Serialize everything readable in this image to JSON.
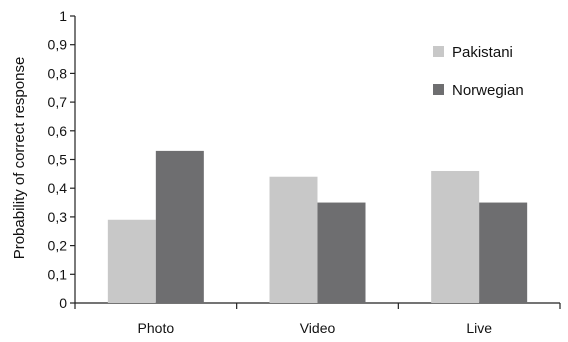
{
  "chart_data": {
    "type": "bar",
    "title": "",
    "xlabel": "",
    "ylabel": "Probability of correct response",
    "categories": [
      "Photo",
      "Video",
      "Live"
    ],
    "series": [
      {
        "name": "Pakistani",
        "values": [
          0.29,
          0.44,
          0.46
        ],
        "color": "#c8c8c8"
      },
      {
        "name": "Norwegian",
        "values": [
          0.53,
          0.35,
          0.35
        ],
        "color": "#6e6e70"
      }
    ],
    "ylim": [
      0,
      1
    ],
    "yticks": [
      "0",
      "0,1",
      "0,2",
      "0,3",
      "0,4",
      "0,5",
      "0,6",
      "0,7",
      "0,8",
      "0,9",
      "1"
    ],
    "grid": false,
    "legend_position": "top-right"
  }
}
